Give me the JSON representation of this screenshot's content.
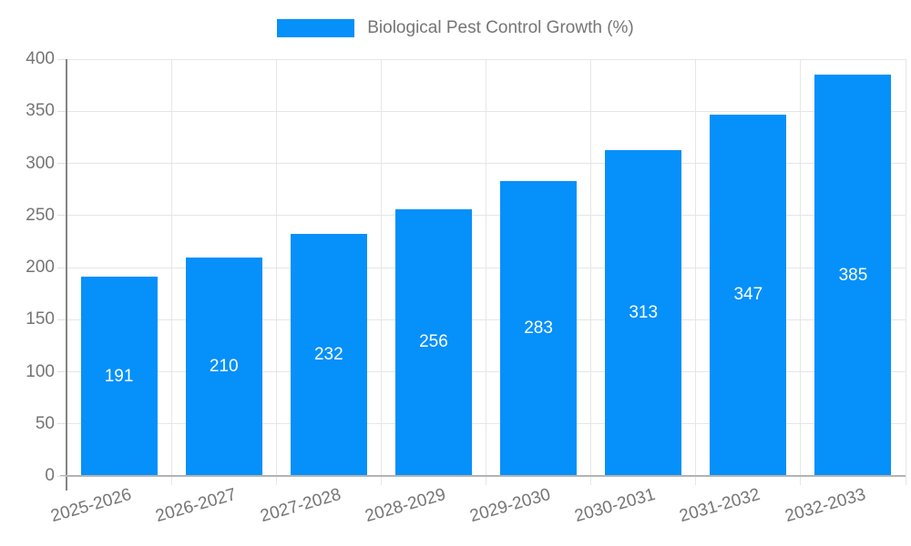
{
  "chart_data": {
    "type": "bar",
    "title": "",
    "legend": {
      "label": "Biological Pest Control Growth (%)",
      "position": "top"
    },
    "categories": [
      "2025-2026",
      "2026-2027",
      "2027-2028",
      "2028-2029",
      "2029-2030",
      "2030-2031",
      "2031-2032",
      "2032-2033"
    ],
    "values": [
      191,
      210,
      232,
      256,
      283,
      313,
      347,
      385
    ],
    "xlabel": "",
    "ylabel": "",
    "ylim": [
      0,
      400
    ],
    "ytick_step": 50,
    "grid": true,
    "annotations_inside_bars": true,
    "colors": {
      "bar": "#0590fa",
      "annotation_text": "#ffffff",
      "axis_text": "#757575",
      "gridline": "#e6e6e6",
      "y_axis_line": "#848484",
      "x_axis_line": "#b3b3b3"
    }
  }
}
